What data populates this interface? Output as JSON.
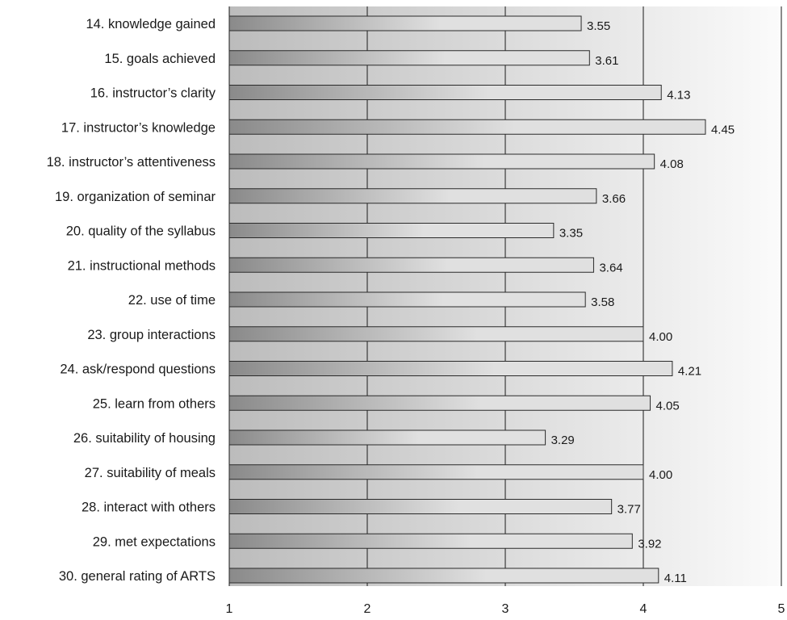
{
  "chart_data": {
    "type": "bar",
    "orientation": "horizontal",
    "categories": [
      "14. knowledge gained",
      "15. goals achieved",
      "16. instructor’s clarity",
      "17. instructor’s knowledge",
      "18. instructor’s attentiveness",
      "19. organization of seminar",
      "20. quality of the syllabus",
      "21. instructional methods",
      "22. use of time",
      "23. group interactions",
      "24. ask/respond questions",
      "25. learn from others",
      "26. suitability of housing",
      "27. suitability of meals",
      "28. interact with others",
      "29. met expectations",
      "30. general rating of ARTS"
    ],
    "values": [
      3.55,
      3.61,
      4.13,
      4.45,
      4.08,
      3.66,
      3.35,
      3.64,
      3.58,
      4.0,
      4.21,
      4.05,
      3.29,
      4.0,
      3.77,
      3.92,
      4.11
    ],
    "value_labels": [
      "3.55",
      "3.61",
      "4.13",
      "4.45",
      "4.08",
      "3.66",
      "3.35",
      "3.64",
      "3.58",
      "4.00",
      "4.21",
      "4.05",
      "3.29",
      "4.00",
      "3.77",
      "3.92",
      "4.11"
    ],
    "xlim": [
      1,
      5
    ],
    "xticks": [
      1,
      2,
      3,
      4,
      5
    ],
    "xtick_labels": [
      "1",
      "2",
      "3",
      "4",
      "5"
    ],
    "grid": "vertical",
    "legend": "none",
    "title": "",
    "xlabel": "",
    "ylabel": ""
  },
  "colors": {
    "bar_gradient_start": "#8a8a8a",
    "bar_gradient_end": "#e0e0e0",
    "bar_stroke": "#2a2a2a",
    "plot_gradient_start": "#bcbcbc",
    "plot_gradient_end": "#fbfbfb",
    "gridline": "#1a1a1a"
  }
}
